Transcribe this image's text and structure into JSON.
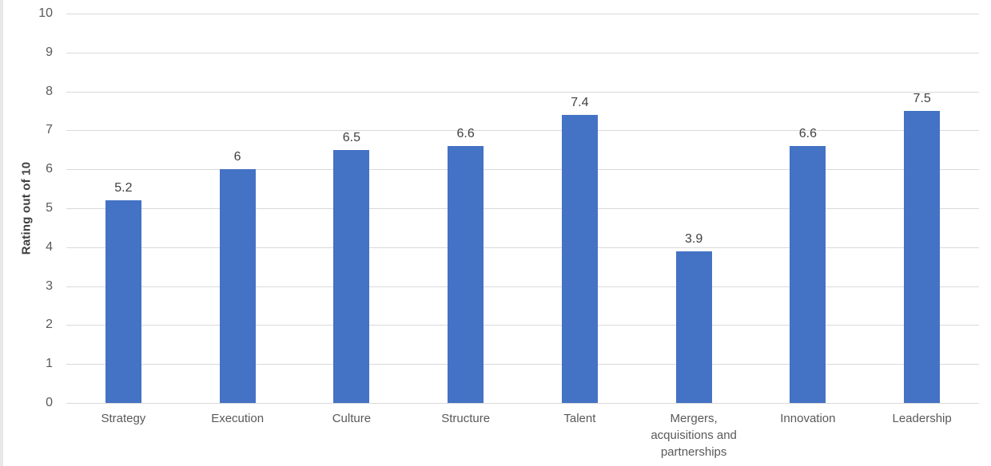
{
  "chart_data": {
    "type": "bar",
    "title": "",
    "xlabel": "",
    "ylabel": "Rating out of 10",
    "categories": [
      "Strategy",
      "Execution",
      "Culture",
      "Structure",
      "Talent",
      "Mergers, acquisitions and partnerships",
      "Innovation",
      "Leadership"
    ],
    "values": [
      5.2,
      6,
      6.5,
      6.6,
      7.4,
      3.9,
      6.6,
      7.5
    ],
    "value_labels": [
      "5.2",
      "6",
      "6.5",
      "6.6",
      "7.4",
      "3.9",
      "6.6",
      "7.5"
    ],
    "ylim": [
      0,
      10
    ],
    "y_ticks": [
      0,
      1,
      2,
      3,
      4,
      5,
      6,
      7,
      8,
      9,
      10
    ],
    "grid": true,
    "legend": false,
    "colors": {
      "bar": "#4472C4",
      "gridline": "#d9d9d9",
      "axis_text": "#595959",
      "data_label_text": "#404040"
    }
  }
}
